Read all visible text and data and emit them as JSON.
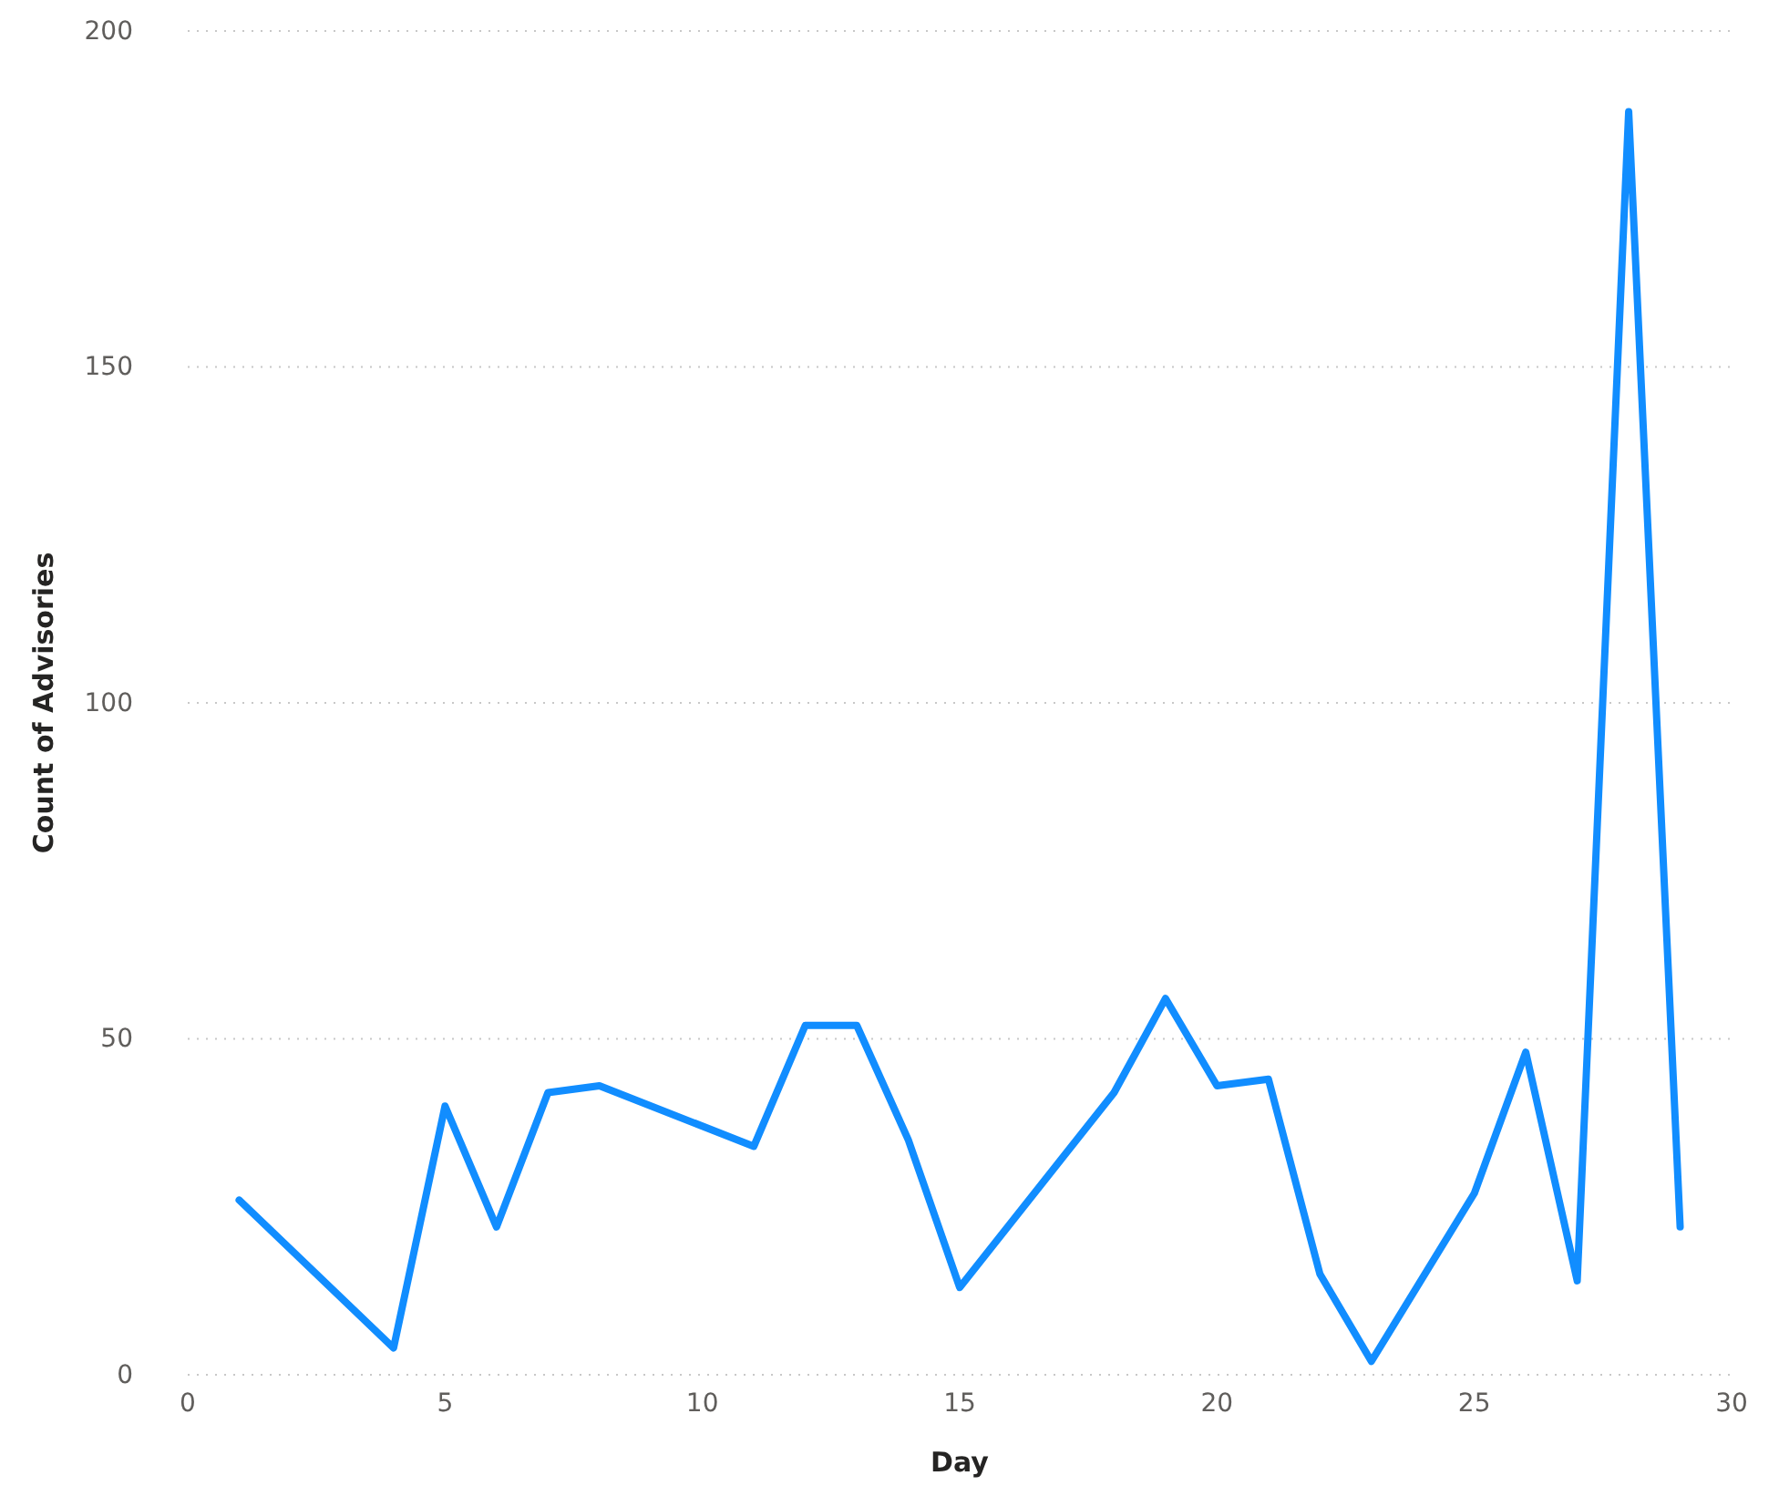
{
  "chart_data": {
    "type": "line",
    "xlabel": "Day",
    "ylabel": "Count of Advisories",
    "x": [
      1,
      4,
      5,
      6,
      7,
      8,
      11,
      12,
      13,
      14,
      15,
      18,
      19,
      20,
      21,
      22,
      23,
      25,
      26,
      27,
      28,
      29
    ],
    "series": [
      {
        "color": "#118dff",
        "values": [
          26,
          4,
          40,
          22,
          42,
          43,
          34,
          52,
          52,
          35,
          13,
          42,
          56,
          43,
          44,
          15,
          2,
          27,
          48,
          14,
          188,
          22
        ]
      }
    ],
    "xlim": [
      0,
      30
    ],
    "xticks": [
      0,
      5,
      10,
      15,
      20,
      25,
      30
    ],
    "ylim": [
      0,
      200
    ],
    "yticks": [
      0,
      50,
      100,
      150,
      200
    ],
    "grid": "y",
    "marker": "none",
    "line_style": "solid"
  }
}
